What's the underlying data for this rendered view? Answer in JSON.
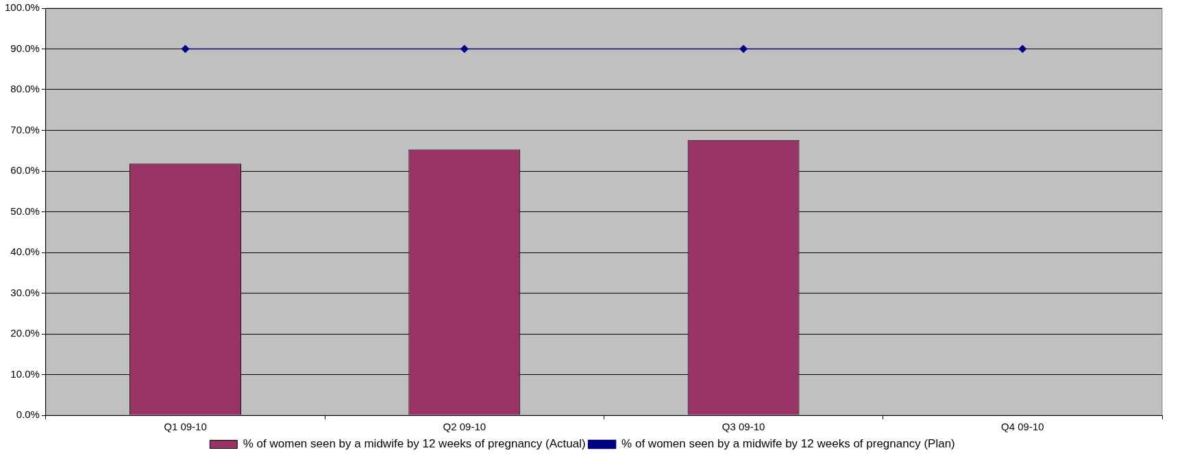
{
  "chart_data": {
    "type": "bar",
    "categories": [
      "Q1 09-10",
      "Q2 09-10",
      "Q3 09-10",
      "Q4 09-10"
    ],
    "series": [
      {
        "name": "% of women seen by a midwife by 12 weeks of pregnancy (Actual)",
        "color": "#993366",
        "values": [
          61.8,
          65.3,
          67.6,
          null
        ]
      },
      {
        "name": "% of women seen by a midwife by 12 weeks of pregnancy (Plan)",
        "type": "line",
        "color": "#000080",
        "values": [
          90,
          90,
          90,
          90
        ],
        "marker": "diamond"
      }
    ],
    "ylim": [
      0,
      100
    ],
    "yticks": [
      {
        "value": 0,
        "label": "0.0%"
      },
      {
        "value": 10,
        "label": "10.0%"
      },
      {
        "value": 20,
        "label": "20.0%"
      },
      {
        "value": 30,
        "label": "30.0%"
      },
      {
        "value": 40,
        "label": "40.0%"
      },
      {
        "value": 50,
        "label": "50.0%"
      },
      {
        "value": 60,
        "label": "60.0%"
      },
      {
        "value": 70,
        "label": "70.0%"
      },
      {
        "value": 80,
        "label": "80.0%"
      },
      {
        "value": 90,
        "label": "90.0%"
      },
      {
        "value": 100,
        "label": "100.0%"
      }
    ],
    "grid": "y",
    "legend": "bottom"
  }
}
